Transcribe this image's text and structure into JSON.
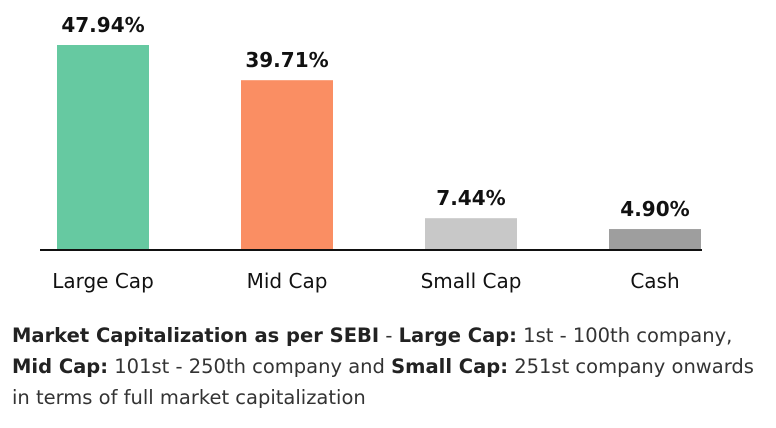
{
  "chart_data": {
    "type": "bar",
    "title": "",
    "xlabel": "",
    "ylabel": "",
    "ylim": [
      0,
      50
    ],
    "grid": false,
    "legend": "none",
    "categories": [
      "Large Cap",
      "Mid Cap",
      "Small Cap",
      "Cash"
    ],
    "values": [
      47.94,
      39.71,
      7.44,
      4.9
    ],
    "data_labels": [
      "47.94%",
      "39.71%",
      "7.44%",
      "4.90%"
    ],
    "colors": [
      "#66C9A1",
      "#FA8E63",
      "#C8C8C8",
      "#9E9E9E"
    ],
    "axis_color": "#111111"
  },
  "footnote": {
    "part1_bold": "Market Capitalization as per SEBI",
    "part2": " - ",
    "part3_bold": "Large Cap:",
    "part4": " 1st - 100th company, ",
    "part5_bold": "Mid Cap:",
    "part6": " 101st - 250th company and ",
    "part7_bold": "Small Cap:",
    "part8": " 251st company onwards in terms of full market capitalization"
  }
}
